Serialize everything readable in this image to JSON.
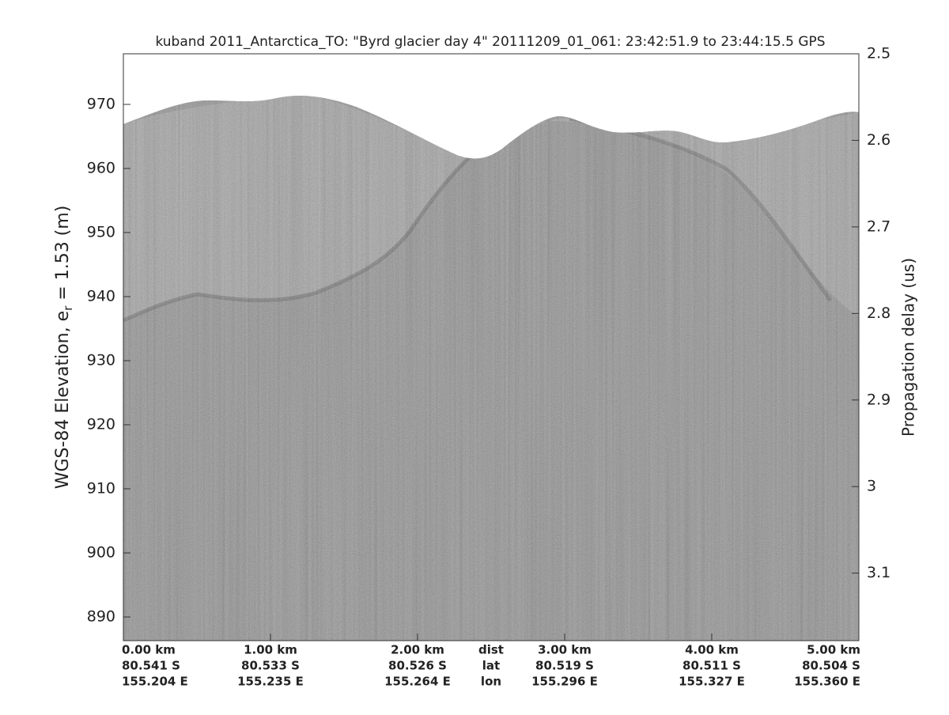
{
  "chart_data": {
    "type": "echogram",
    "title": "kuband 2011_Antarctica_TO: \"Byrd glacier day 4\"  20111209_01_061: 23:42:51.9 to 23:44:15.5 GPS",
    "ylabel": [
      "WGS-84 Elevation, e",
      "r",
      " = 1.53 (m)"
    ],
    "y2label": "Propagation delay (us)",
    "xlim": [
      0,
      5
    ],
    "xticks": [
      {
        "value": 0,
        "label": "0.00 km"
      },
      {
        "value": 1,
        "label": "1.00 km"
      },
      {
        "value": 2,
        "label": "2.00 km"
      },
      {
        "value": 3,
        "label": "3.00 km"
      },
      {
        "value": 4,
        "label": "4.00 km"
      },
      {
        "value": 5,
        "label": "5.00 km"
      }
    ],
    "xtick_lat": [
      "80.541 S",
      "80.533 S",
      "80.526 S",
      "80.519 S",
      "80.511 S",
      "80.504 S"
    ],
    "xtick_lon": [
      "155.204 E",
      "155.235 E",
      "155.264 E",
      "155.296 E",
      "155.327 E",
      "155.360 E"
    ],
    "xtick_row_names": [
      "dist",
      "lat",
      "lon"
    ],
    "ylim": [
      886.3,
      977.9
    ],
    "yticks": [
      890,
      900,
      910,
      920,
      930,
      940,
      950,
      960,
      970
    ],
    "y2lim": [
      2.5,
      3.178
    ],
    "y2ticks": [
      2.5,
      2.6,
      2.7,
      2.8,
      2.9,
      3,
      3.1
    ]
  }
}
